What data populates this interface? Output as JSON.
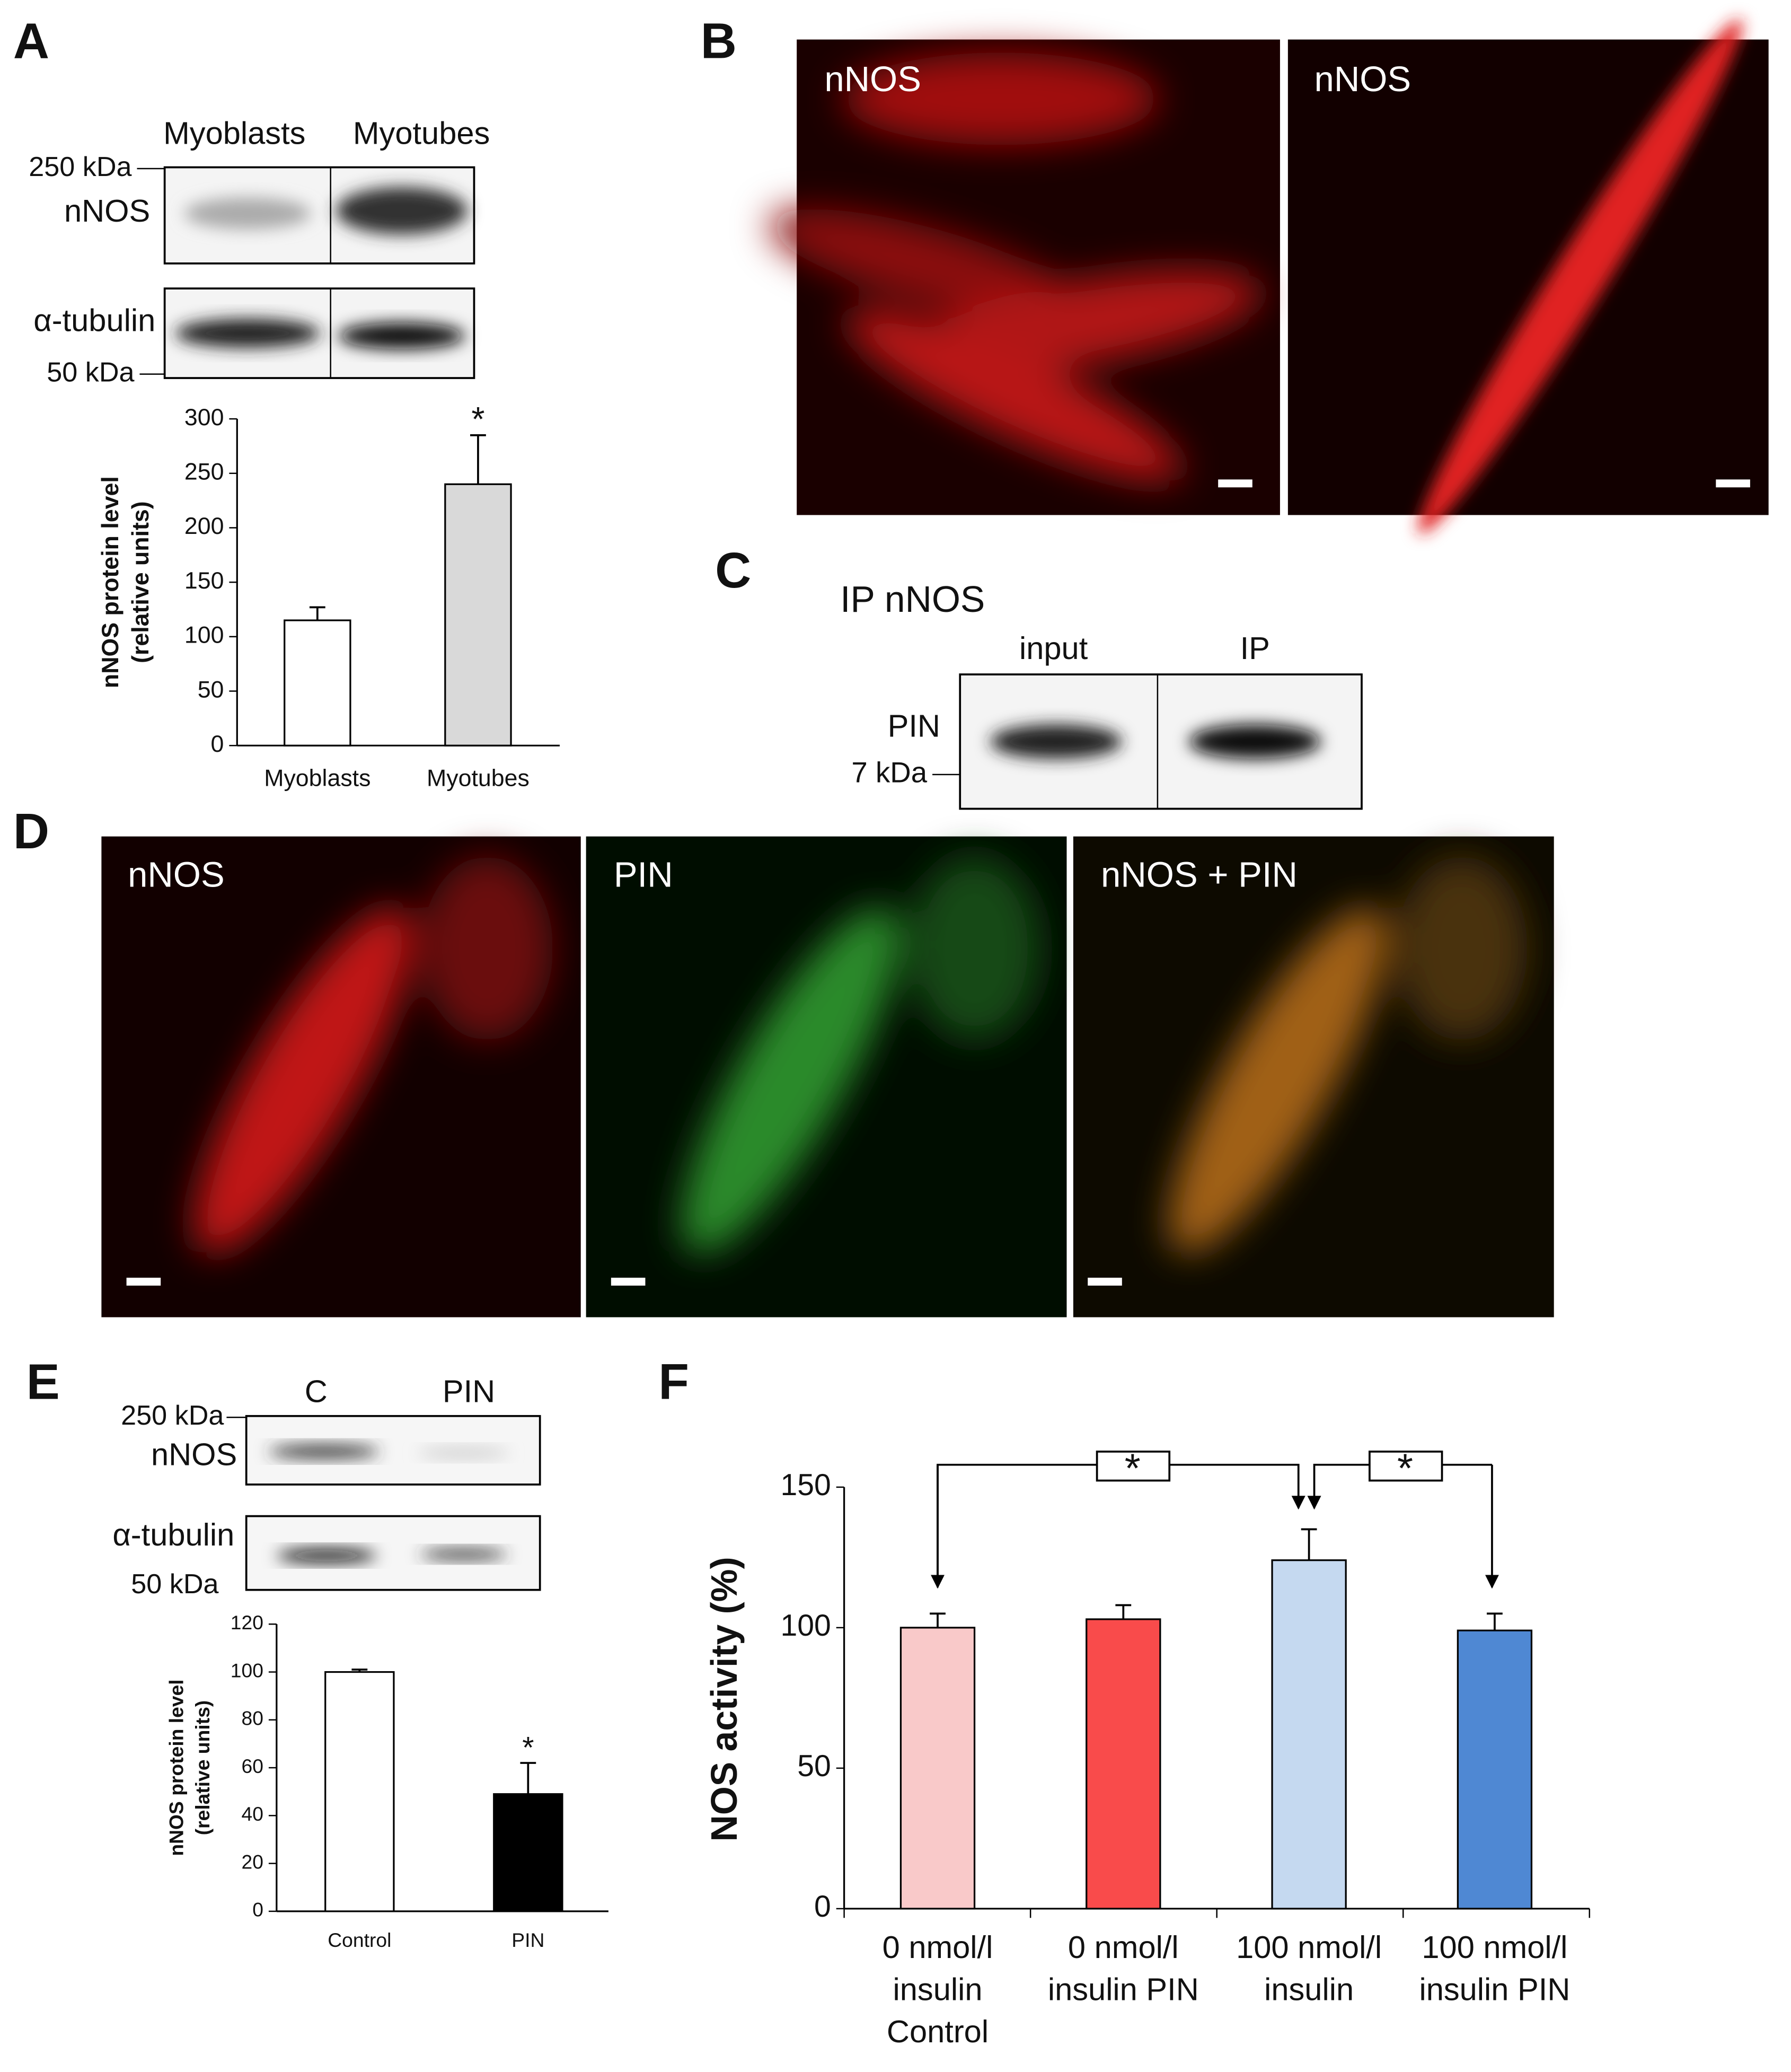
{
  "panels": {
    "labels": [
      "A",
      "B",
      "C",
      "D",
      "E",
      "F"
    ]
  },
  "blot_a": {
    "lanes": [
      "Myoblasts",
      "Myotubes"
    ],
    "markers": [
      "250 kDa",
      "50 kDa"
    ],
    "bands": [
      "nNOS",
      "α-tubulin"
    ]
  },
  "images_b": {
    "labels": [
      "nNOS",
      "nNOS"
    ]
  },
  "blot_c": {
    "title": "IP nNOS",
    "lanes": [
      "input",
      "IP"
    ],
    "band": "PIN",
    "marker": "7 kDa"
  },
  "images_d": {
    "labels": [
      "nNOS",
      "PIN",
      "nNOS + PIN"
    ]
  },
  "blot_e": {
    "lanes": [
      "C",
      "PIN"
    ],
    "markers": [
      "250 kDa",
      "50 kDa"
    ],
    "bands": [
      "nNOS",
      "α-tubulin"
    ]
  },
  "chart_data": [
    {
      "type": "bar",
      "y_label": [
        "nNOS protein level",
        "(relative units)"
      ],
      "categories": [
        "Myoblasts",
        "Myotubes"
      ],
      "values": [
        115,
        240
      ],
      "errors": [
        12,
        45
      ],
      "colors": [
        "#ffffff",
        "#d9d9d9"
      ],
      "ylim": [
        0,
        300
      ],
      "yticks": [
        0,
        50,
        100,
        150,
        200,
        250,
        300
      ],
      "annotations": [
        "*"
      ]
    },
    {
      "type": "bar",
      "y_label": [
        "nNOS protein level",
        "(relative units)"
      ],
      "categories": [
        "Control",
        "PIN"
      ],
      "values": [
        100,
        49
      ],
      "errors": [
        1,
        13
      ],
      "colors": [
        "#ffffff",
        "#000000"
      ],
      "ylim": [
        0,
        120
      ],
      "yticks": [
        0,
        20,
        40,
        60,
        80,
        100,
        120
      ],
      "annotations": [
        "*"
      ]
    },
    {
      "type": "bar",
      "y_label": "NOS activity (%)",
      "categories": [
        "0 nmol/l\ninsulin\nControl",
        "0 nmol/l\ninsulin PIN",
        "100 nmol/l\ninsulin",
        "100 nmol/l\ninsulin PIN"
      ],
      "values": [
        100,
        103,
        124,
        99
      ],
      "errors": [
        5,
        5,
        11,
        6
      ],
      "colors": [
        "#f9c9c9",
        "#f94b4b",
        "#c5d9f0",
        "#4f88d3"
      ],
      "ylim": [
        0,
        150
      ],
      "yticks": [
        0,
        50,
        100,
        150
      ],
      "annotations": [
        "*",
        "*"
      ]
    }
  ]
}
